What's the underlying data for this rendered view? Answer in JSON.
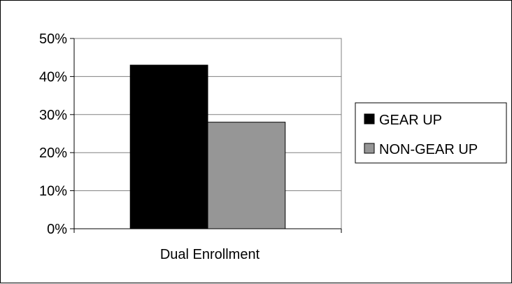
{
  "chart_data": {
    "type": "bar",
    "categories": [
      "Dual Enrollment"
    ],
    "series": [
      {
        "name": "GEAR UP",
        "values": [
          0.43
        ],
        "color": "#000000"
      },
      {
        "name": "NON-GEAR UP",
        "values": [
          0.28
        ],
        "color": "#969696"
      }
    ],
    "y_ticks": [
      "0%",
      "10%",
      "20%",
      "30%",
      "40%",
      "50%"
    ],
    "ylim": [
      0,
      0.5
    ],
    "y_format": "percent",
    "grid": true,
    "legend_position": "right",
    "plot_background": "#ffffff"
  }
}
